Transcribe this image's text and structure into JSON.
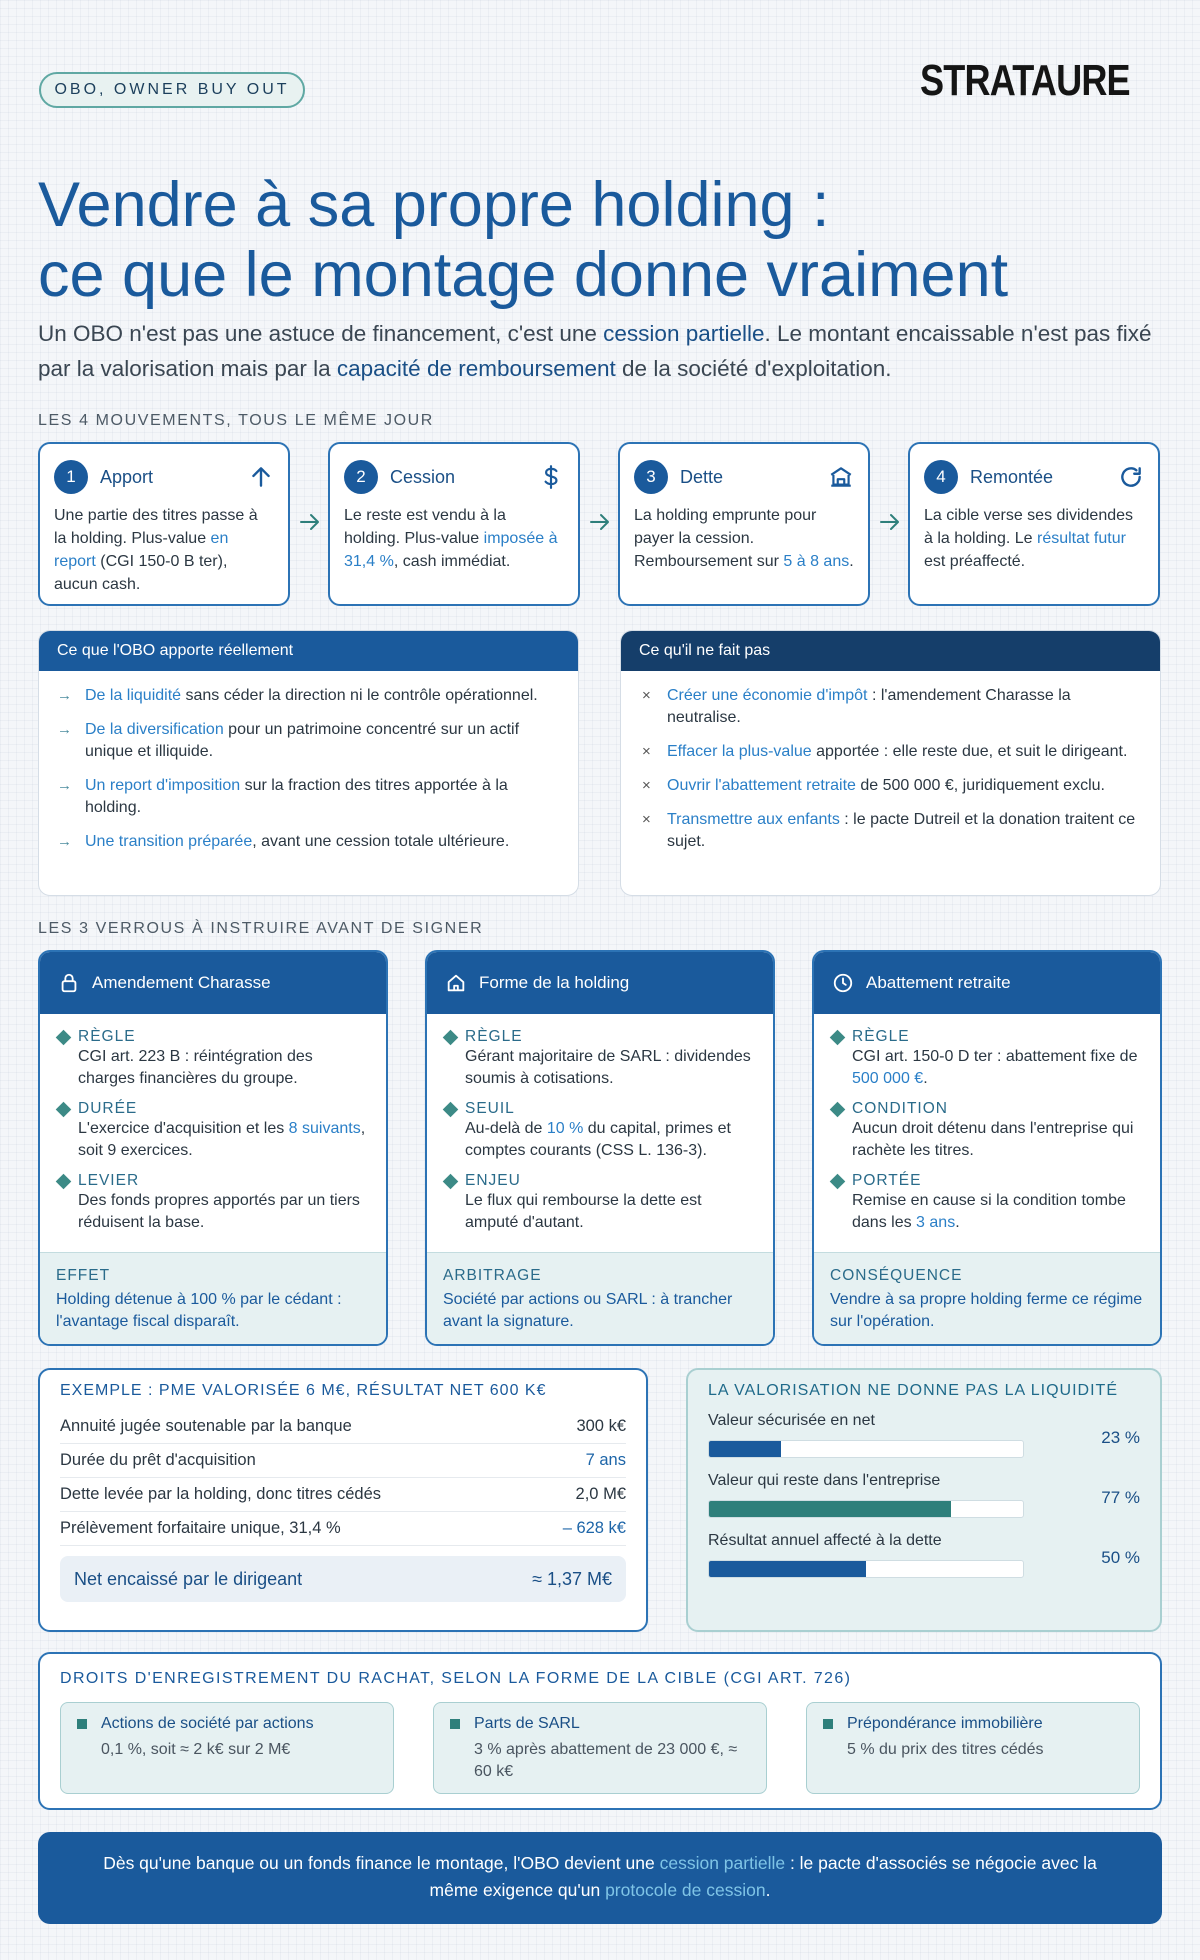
{
  "header": {
    "pill": "OBO, OWNER BUY OUT",
    "logo": "STRATAURE"
  },
  "title": {
    "line1": "Vendre à sa propre holding :",
    "line2": "ce que le montage donne vraiment"
  },
  "intro": {
    "p1": "Un OBO n'est pas une astuce de financement, c'est une ",
    "h1": "cession partielle",
    "p2": ". Le montant encaissable n'est pas fixé par la valorisation mais par la ",
    "h2": "capacité de remboursement",
    "p3": " de la société d'exploitation."
  },
  "mouvements": {
    "label": "LES 4 MOUVEMENTS, TOUS LE MÊME JOUR",
    "steps": [
      {
        "num": "1",
        "title": "Apport",
        "icon": "arrow-up-icon",
        "t1": "Une partie des titres passe à la holding. Plus-value ",
        "h1": "en report",
        "t2": " (CGI 150-0 B ter), aucun cash."
      },
      {
        "num": "2",
        "title": "Cession",
        "icon": "dollar-icon",
        "t1": "Le reste est vendu à la holding. Plus-value ",
        "h1": "imposée à 31,4 %",
        "t2": ", cash immédiat."
      },
      {
        "num": "3",
        "title": "Dette",
        "icon": "bank-icon",
        "t1": "La holding emprunte pour payer la cession. Remboursement sur ",
        "h1": "5 à 8 ans",
        "t2": "."
      },
      {
        "num": "4",
        "title": "Remontée",
        "icon": "refresh-icon",
        "t1": "La cible verse ses dividendes à la holding. Le ",
        "h1": "résultat futur",
        "t2": " est préaffecté."
      }
    ]
  },
  "apporte": {
    "title": "Ce que l'OBO apporte réellement",
    "items": [
      {
        "h": "De la liquidité",
        "t": " sans céder la direction ni le contrôle opérationnel."
      },
      {
        "h": "De la diversification",
        "t": " pour un patrimoine concentré sur un actif unique et illiquide."
      },
      {
        "h": "Un report d'imposition",
        "t": " sur la fraction des titres apportée à la holding."
      },
      {
        "h": "Une transition préparée",
        "t": ", avant une cession totale ultérieure."
      }
    ]
  },
  "nefaitpas": {
    "title": "Ce qu'il ne fait pas",
    "items": [
      {
        "h": "Créer une économie d'impôt",
        "t": " : l'amendement Charasse la neutralise."
      },
      {
        "h": "Effacer la plus-value",
        "t": " apportée : elle reste due, et suit le dirigeant."
      },
      {
        "h": "Ouvrir l'abattement retraite",
        "t": " de 500 000 €, juridiquement exclu."
      },
      {
        "h": "Transmettre aux enfants",
        "t": " : le pacte Dutreil et la donation traitent ce sujet."
      }
    ]
  },
  "verrous": {
    "label": "LES 3 VERROUS À INSTRUIRE AVANT DE SIGNER",
    "cards": [
      {
        "title": "Amendement Charasse",
        "icon": "lock-icon",
        "rules": [
          {
            "k": "RÈGLE",
            "v": "CGI art. 223 B : réintégration des charges financières du groupe."
          },
          {
            "k": "DURÉE",
            "v1": "L'exercice d'acquisition et les ",
            "vh": "8 suivants",
            "v2": ", soit 9 exercices."
          },
          {
            "k": "LEVIER",
            "v": "Des fonds propres apportés par un tiers réduisent la base."
          }
        ],
        "foot_k": "EFFET",
        "foot_v": "Holding détenue à 100 % par le cédant : l'avantage fiscal disparaît."
      },
      {
        "title": "Forme de la holding",
        "icon": "home-icon",
        "rules": [
          {
            "k": "RÈGLE",
            "v": "Gérant majoritaire de SARL : dividendes soumis à cotisations."
          },
          {
            "k": "SEUIL",
            "v1": "Au-delà de ",
            "vh": "10 %",
            "v2": " du capital, primes et comptes courants (CSS L. 136-3)."
          },
          {
            "k": "ENJEU",
            "v": "Le flux qui rembourse la dette est amputé d'autant."
          }
        ],
        "foot_k": "ARBITRAGE",
        "foot_v": "Société par actions ou SARL : à trancher avant la signature."
      },
      {
        "title": "Abattement retraite",
        "icon": "clock-icon",
        "rules": [
          {
            "k": "RÈGLE",
            "v1": "CGI art. 150-0 D ter : abattement fixe de ",
            "vh": "500 000 €",
            "v2": "."
          },
          {
            "k": "CONDITION",
            "v": "Aucun droit détenu dans l'entreprise qui rachète les titres."
          },
          {
            "k": "PORTÉE",
            "v1": "Remise en cause si la condition tombe dans les ",
            "vh": "3 ans",
            "v2": "."
          }
        ],
        "foot_k": "CONSÉQUENCE",
        "foot_v": "Vendre à sa propre holding ferme ce régime sur l'opération."
      }
    ]
  },
  "exemple": {
    "title": "EXEMPLE : PME VALORISÉE 6 M€, RÉSULTAT NET 600 K€",
    "rows": [
      {
        "label": "Annuité jugée soutenable par la banque",
        "value": "300 k€"
      },
      {
        "label": "Durée du prêt d'acquisition",
        "value": "7 ans"
      },
      {
        "label": "Dette levée par la holding, donc titres cédés",
        "value": "2,0 M€"
      },
      {
        "label": "Prélèvement forfaitaire unique, 31,4 %",
        "value": "– 628 k€"
      }
    ],
    "net_label": "Net encaissé par le dirigeant",
    "net_value": "≈ 1,37 M€"
  },
  "valorisation": {
    "title": "LA VALORISATION NE DONNE PAS LA LIQUIDITÉ",
    "bars": [
      {
        "label": "Valeur sécurisée en net",
        "pct_text": "23 %",
        "fraction": 0.23,
        "color": "#1a5a9c"
      },
      {
        "label": "Valeur qui reste dans l'entreprise",
        "pct_text": "77 %",
        "fraction": 0.77,
        "color": "#2e7f7b"
      },
      {
        "label": "Résultat annuel affecté à la dette",
        "pct_text": "50 %",
        "fraction": 0.5,
        "color": "#1a5a9c"
      }
    ]
  },
  "droits": {
    "title": "DROITS D'ENREGISTREMENT DU RACHAT, SELON LA FORME DE LA CIBLE (CGI ART. 726)",
    "cards": [
      {
        "t": "Actions de société par actions",
        "d": "0,1 %, soit ≈ 2 k€ sur 2 M€"
      },
      {
        "t": "Parts de SARL",
        "d": "3 % après abattement de 23 000 €, ≈ 60 k€"
      },
      {
        "t": "Prépondérance immobilière",
        "d": "5 % du prix des titres cédés"
      }
    ]
  },
  "banner": {
    "t1": "Dès qu'une banque ou un fonds finance le montage, l'OBO devient une ",
    "h1": "cession partielle",
    "t2": " : le pacte d'associés se négocie avec la même exigence qu'un ",
    "h2": "protocole de cession",
    "t3": "."
  },
  "colors": {
    "primary": "#1a5a9c",
    "dark": "#153e6a",
    "teal": "#2e7f7b",
    "accent": "#2a7fc7"
  }
}
